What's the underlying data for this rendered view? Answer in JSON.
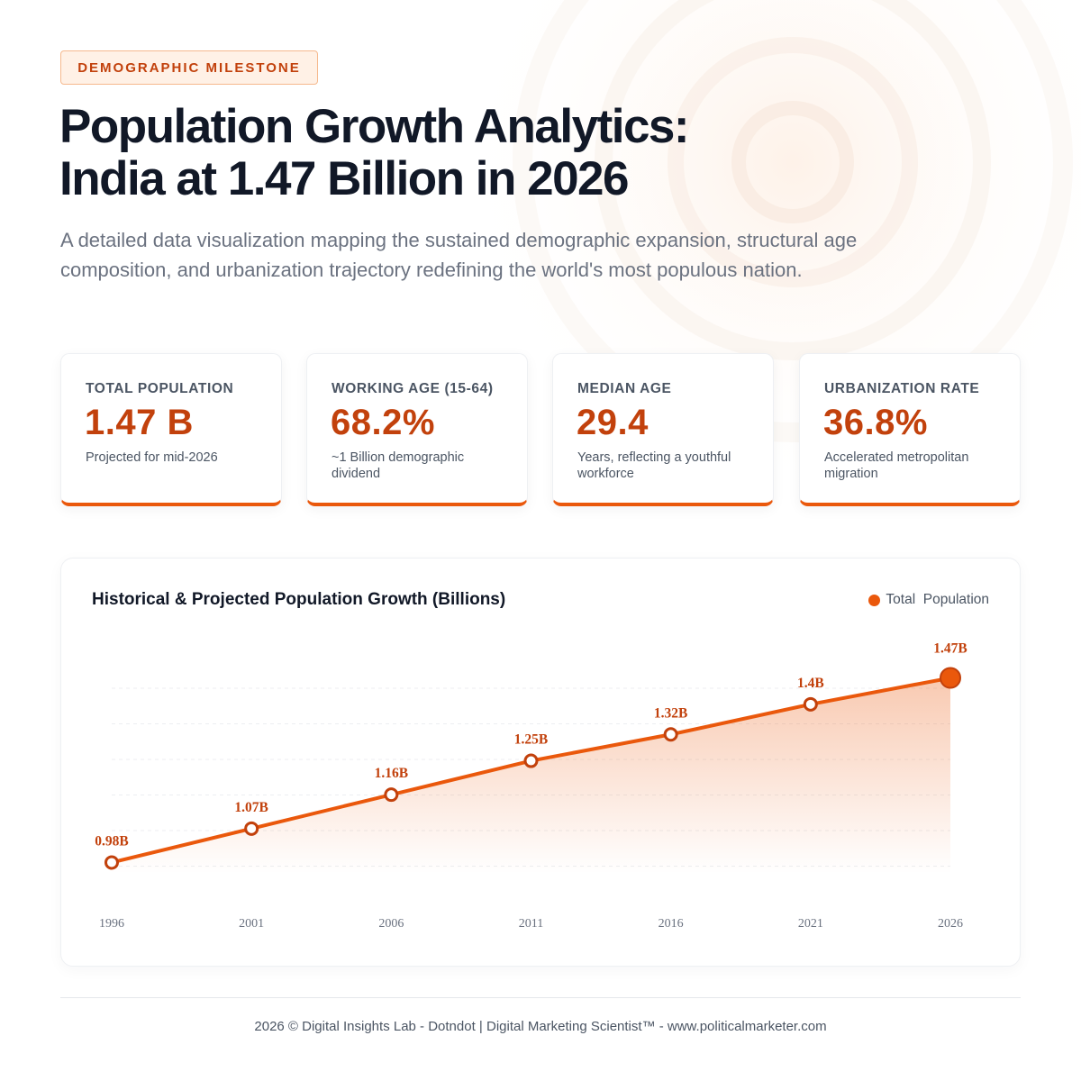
{
  "header": {
    "badge": "DEMOGRAPHIC MILESTONE",
    "title_line1": "Population Growth Analytics:",
    "title_line2": "India at 1.47 Billion in 2026",
    "subtitle": "A detailed data visualization mapping the sustained demographic expansion, structural age composition, and urbanization trajectory redefining the world's most populous nation."
  },
  "stats": [
    {
      "label": "TOTAL POPULATION",
      "value": "1.47 B",
      "note": "Projected for mid-2026"
    },
    {
      "label": "WORKING AGE (15-64)",
      "value": "68.2%",
      "note": "~1 Billion demographic dividend"
    },
    {
      "label": "MEDIAN AGE",
      "value": "29.4",
      "note": "Years, reflecting a youthful workforce"
    },
    {
      "label": "URBANIZATION RATE",
      "value": "36.8%",
      "note": "Accelerated metropolitan migration"
    }
  ],
  "chart_data": {
    "type": "area",
    "title": "Historical & Projected Population Growth (Billions)",
    "x": [
      "1996",
      "2001",
      "2006",
      "2011",
      "2016",
      "2021",
      "2026"
    ],
    "series": [
      {
        "name": "Total  Population",
        "values": [
          0.98,
          1.07,
          1.16,
          1.25,
          1.32,
          1.4,
          1.47
        ],
        "labels": [
          "0.98B",
          "1.07B",
          "1.16B",
          "1.25B",
          "1.32B",
          "1.4B",
          "1.47B"
        ]
      }
    ],
    "ylim": [
      0.95,
      1.5
    ],
    "grid": true,
    "legend": "top-right",
    "xlabel": "",
    "ylabel": ""
  },
  "colors": {
    "accent": "#ea580c",
    "accent_dark": "#c2410c"
  },
  "footer": {
    "text": "2026 © Digital Insights Lab - Dotndot | Digital Marketing Scientist™ - www.politicalmarketer.com"
  }
}
